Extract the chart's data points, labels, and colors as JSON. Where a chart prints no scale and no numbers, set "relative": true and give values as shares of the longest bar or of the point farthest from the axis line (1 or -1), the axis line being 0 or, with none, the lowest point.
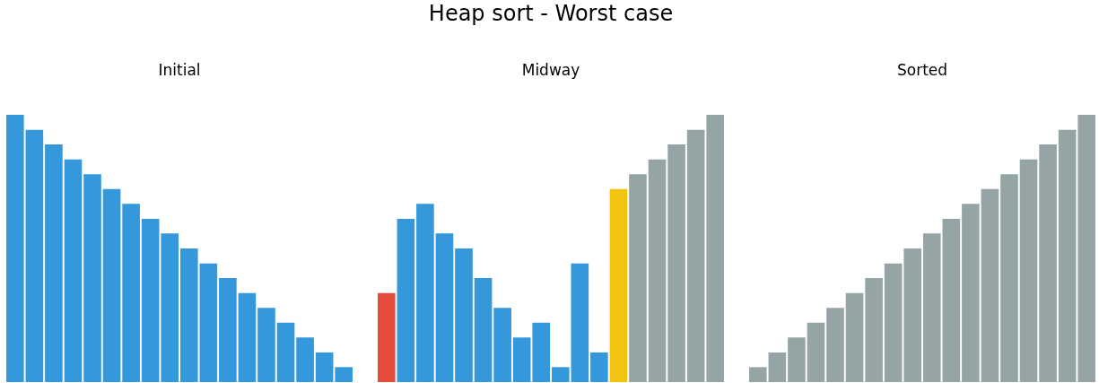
{
  "chart_data": [
    {
      "type": "other",
      "title": "Heap sort - Worst case"
    },
    {
      "type": "bar",
      "title": "Initial",
      "relative": true,
      "categories": [
        null,
        null,
        null,
        null,
        null,
        null,
        null,
        null,
        null,
        null,
        null,
        null,
        null,
        null,
        null,
        null,
        null,
        null
      ],
      "values": [
        1,
        0.944,
        0.889,
        0.833,
        0.778,
        0.722,
        0.667,
        0.611,
        0.556,
        0.5,
        0.444,
        0.389,
        0.333,
        0.278,
        0.222,
        0.167,
        0.111,
        0.056
      ],
      "colors": [
        "#3498db",
        "#3498db",
        "#3498db",
        "#3498db",
        "#3498db",
        "#3498db",
        "#3498db",
        "#3498db",
        "#3498db",
        "#3498db",
        "#3498db",
        "#3498db",
        "#3498db",
        "#3498db",
        "#3498db",
        "#3498db",
        "#3498db",
        "#3498db"
      ]
    },
    {
      "type": "bar",
      "title": "Midway",
      "relative": true,
      "categories": [
        null,
        null,
        null,
        null,
        null,
        null,
        null,
        null,
        null,
        null,
        null,
        null,
        null,
        null,
        null,
        null,
        null,
        null
      ],
      "values": [
        0.333,
        0.611,
        0.667,
        0.556,
        0.5,
        0.389,
        0.278,
        0.167,
        0.222,
        0.056,
        0.444,
        0.111,
        0.722,
        0.778,
        0.833,
        0.889,
        0.944,
        1
      ],
      "colors": [
        "#e74c3c",
        "#3498db",
        "#3498db",
        "#3498db",
        "#3498db",
        "#3498db",
        "#3498db",
        "#3498db",
        "#3498db",
        "#3498db",
        "#3498db",
        "#3498db",
        "#f1c40f",
        "#95a5a6",
        "#95a5a6",
        "#95a5a6",
        "#95a5a6",
        "#95a5a6"
      ]
    },
    {
      "type": "bar",
      "title": "Sorted",
      "relative": true,
      "categories": [
        null,
        null,
        null,
        null,
        null,
        null,
        null,
        null,
        null,
        null,
        null,
        null,
        null,
        null,
        null,
        null,
        null,
        null
      ],
      "values": [
        0.056,
        0.111,
        0.167,
        0.222,
        0.278,
        0.333,
        0.389,
        0.444,
        0.5,
        0.556,
        0.611,
        0.667,
        0.722,
        0.778,
        0.833,
        0.889,
        0.944,
        1
      ],
      "colors": [
        "#95a5a6",
        "#95a5a6",
        "#95a5a6",
        "#95a5a6",
        "#95a5a6",
        "#95a5a6",
        "#95a5a6",
        "#95a5a6",
        "#95a5a6",
        "#95a5a6",
        "#95a5a6",
        "#95a5a6",
        "#95a5a6",
        "#95a5a6",
        "#95a5a6",
        "#95a5a6",
        "#95a5a6",
        "#95a5a6"
      ]
    }
  ]
}
